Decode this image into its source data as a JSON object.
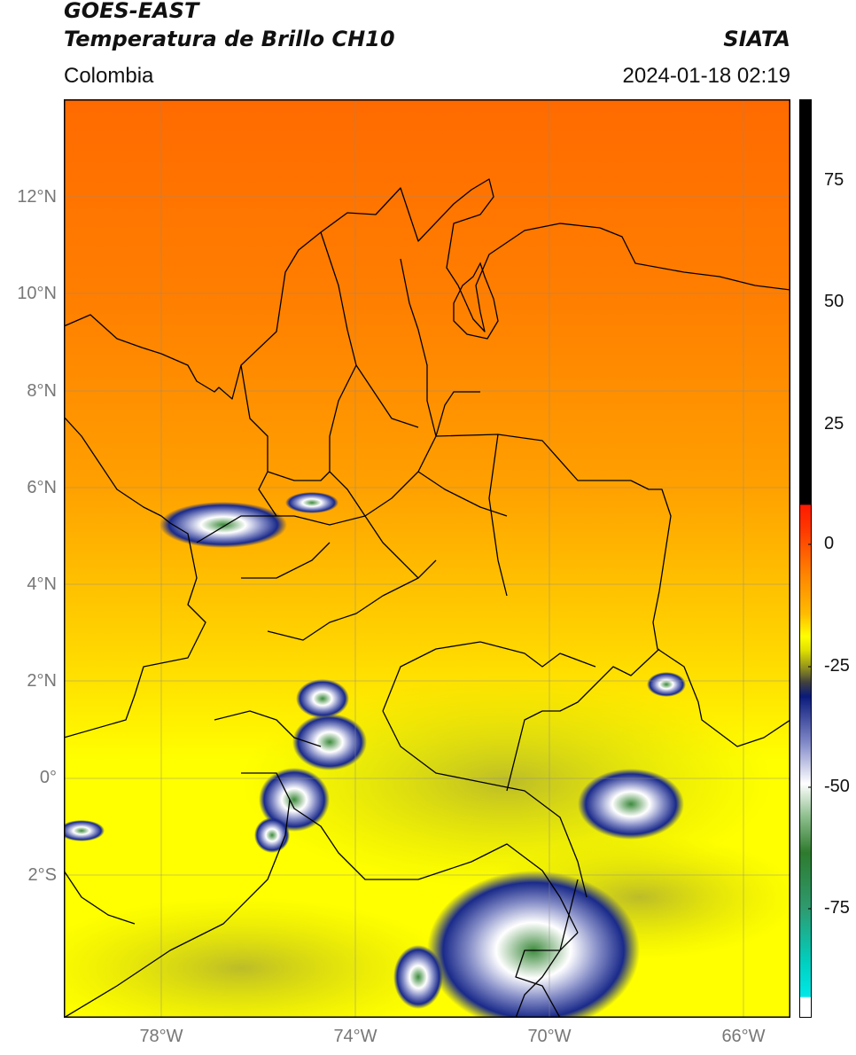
{
  "header": {
    "satellite": "GOES-EAST",
    "product": "Temperatura de Brillo CH10",
    "region": "Colombia",
    "organization": "SIATA",
    "datetime": "2024-01-18 02:19"
  },
  "map": {
    "lat_range": [
      -5,
      14
    ],
    "lon_range": [
      -80,
      -65
    ],
    "lat_ticks": [
      "12°N",
      "10°N",
      "8°N",
      "6°N",
      "4°N",
      "2°N",
      "0°",
      "2°S"
    ],
    "lon_ticks": [
      "78°W",
      "74°W",
      "70°W",
      "66°W"
    ],
    "features": [
      "gridlines",
      "coastline",
      "international-borders",
      "department-borders"
    ]
  },
  "colorbar": {
    "range": [
      -95,
      90
    ],
    "ticks": [
      "75",
      "50",
      "25",
      "0",
      "-25",
      "-50",
      "-75"
    ],
    "colors": {
      "black": "#000000",
      "red": "#ff1a00",
      "orange": "#ff8800",
      "yellow": "#ffff00",
      "olive": "#8c8c20",
      "navy": "#0a1a7a",
      "white": "#ffffff",
      "green": "#2e7a2e",
      "cyan": "#00e0e0"
    }
  }
}
